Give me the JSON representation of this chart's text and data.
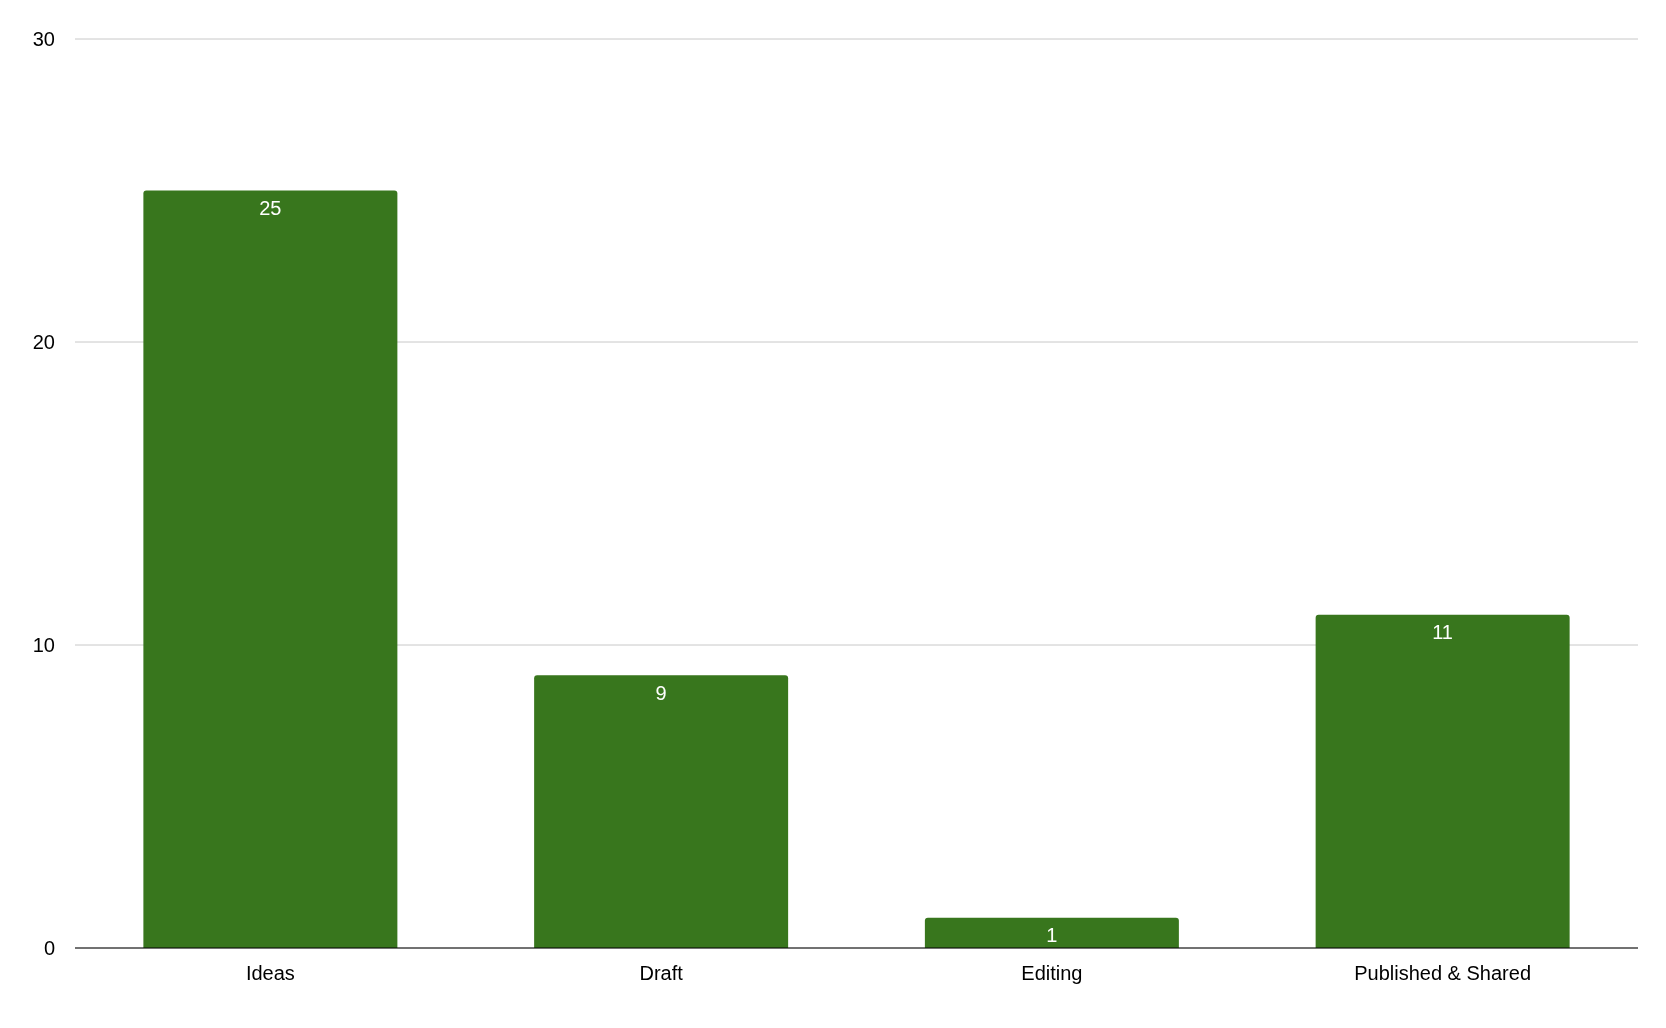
{
  "chart_data": {
    "type": "bar",
    "categories": [
      "Ideas",
      "Draft",
      "Editing",
      "Published & Shared"
    ],
    "values": [
      25,
      9,
      1,
      11
    ],
    "color": "#38761d",
    "ylim": [
      0,
      30
    ],
    "yticks": [
      0,
      10,
      20,
      30
    ],
    "grid": "y",
    "data_labels": true
  }
}
